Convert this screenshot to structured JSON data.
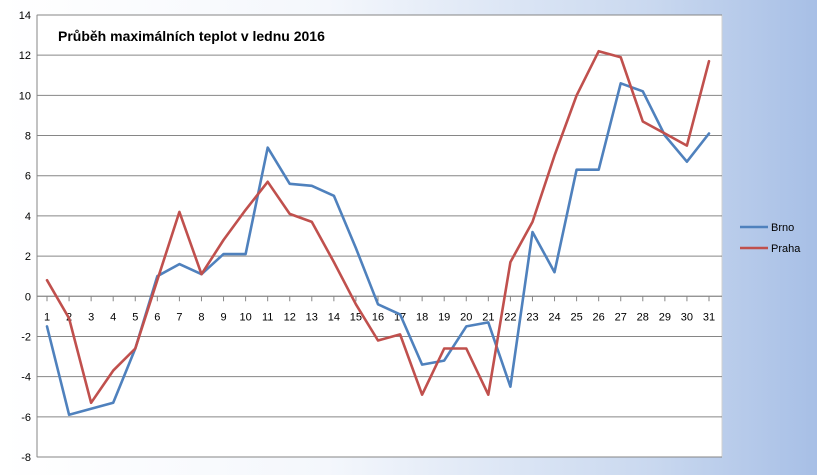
{
  "chart_data": {
    "type": "line",
    "title": "Průběh maximálních teplot v lednu 2016",
    "xlabel": "",
    "ylabel": "",
    "ylim": [
      -8,
      14
    ],
    "yticks": [
      "-8",
      "-6",
      "-4",
      "-2",
      "0",
      "2",
      "4",
      "6",
      "8",
      "10",
      "12",
      "14"
    ],
    "categories": [
      "1",
      "2",
      "3",
      "4",
      "5",
      "6",
      "7",
      "8",
      "9",
      "10",
      "11",
      "12",
      "13",
      "14",
      "15",
      "16",
      "17",
      "18",
      "19",
      "20",
      "21",
      "22",
      "23",
      "24",
      "25",
      "26",
      "27",
      "28",
      "29",
      "30",
      "31"
    ],
    "grid": true,
    "legend_position": "right",
    "series": [
      {
        "name": "Brno",
        "color": "#4f81bd",
        "values": [
          -1.5,
          -5.9,
          -5.6,
          -5.3,
          -2.6,
          1.0,
          1.6,
          1.1,
          2.1,
          2.1,
          7.4,
          5.6,
          5.5,
          5.0,
          2.4,
          -0.4,
          -0.9,
          -3.4,
          -3.2,
          -1.5,
          -1.3,
          -4.5,
          3.2,
          1.2,
          6.3,
          6.3,
          10.6,
          10.2,
          8.0,
          6.7,
          8.1
        ]
      },
      {
        "name": "Praha",
        "color": "#c0504d",
        "values": [
          0.8,
          -1.1,
          -5.3,
          -3.7,
          -2.6,
          0.8,
          4.2,
          1.1,
          2.8,
          4.3,
          5.7,
          4.1,
          3.7,
          1.7,
          -0.4,
          -2.2,
          -1.9,
          -4.9,
          -2.6,
          -2.6,
          -4.9,
          1.7,
          3.7,
          7.0,
          10.0,
          12.2,
          11.9,
          8.7,
          8.1,
          7.5,
          11.7
        ]
      }
    ]
  }
}
